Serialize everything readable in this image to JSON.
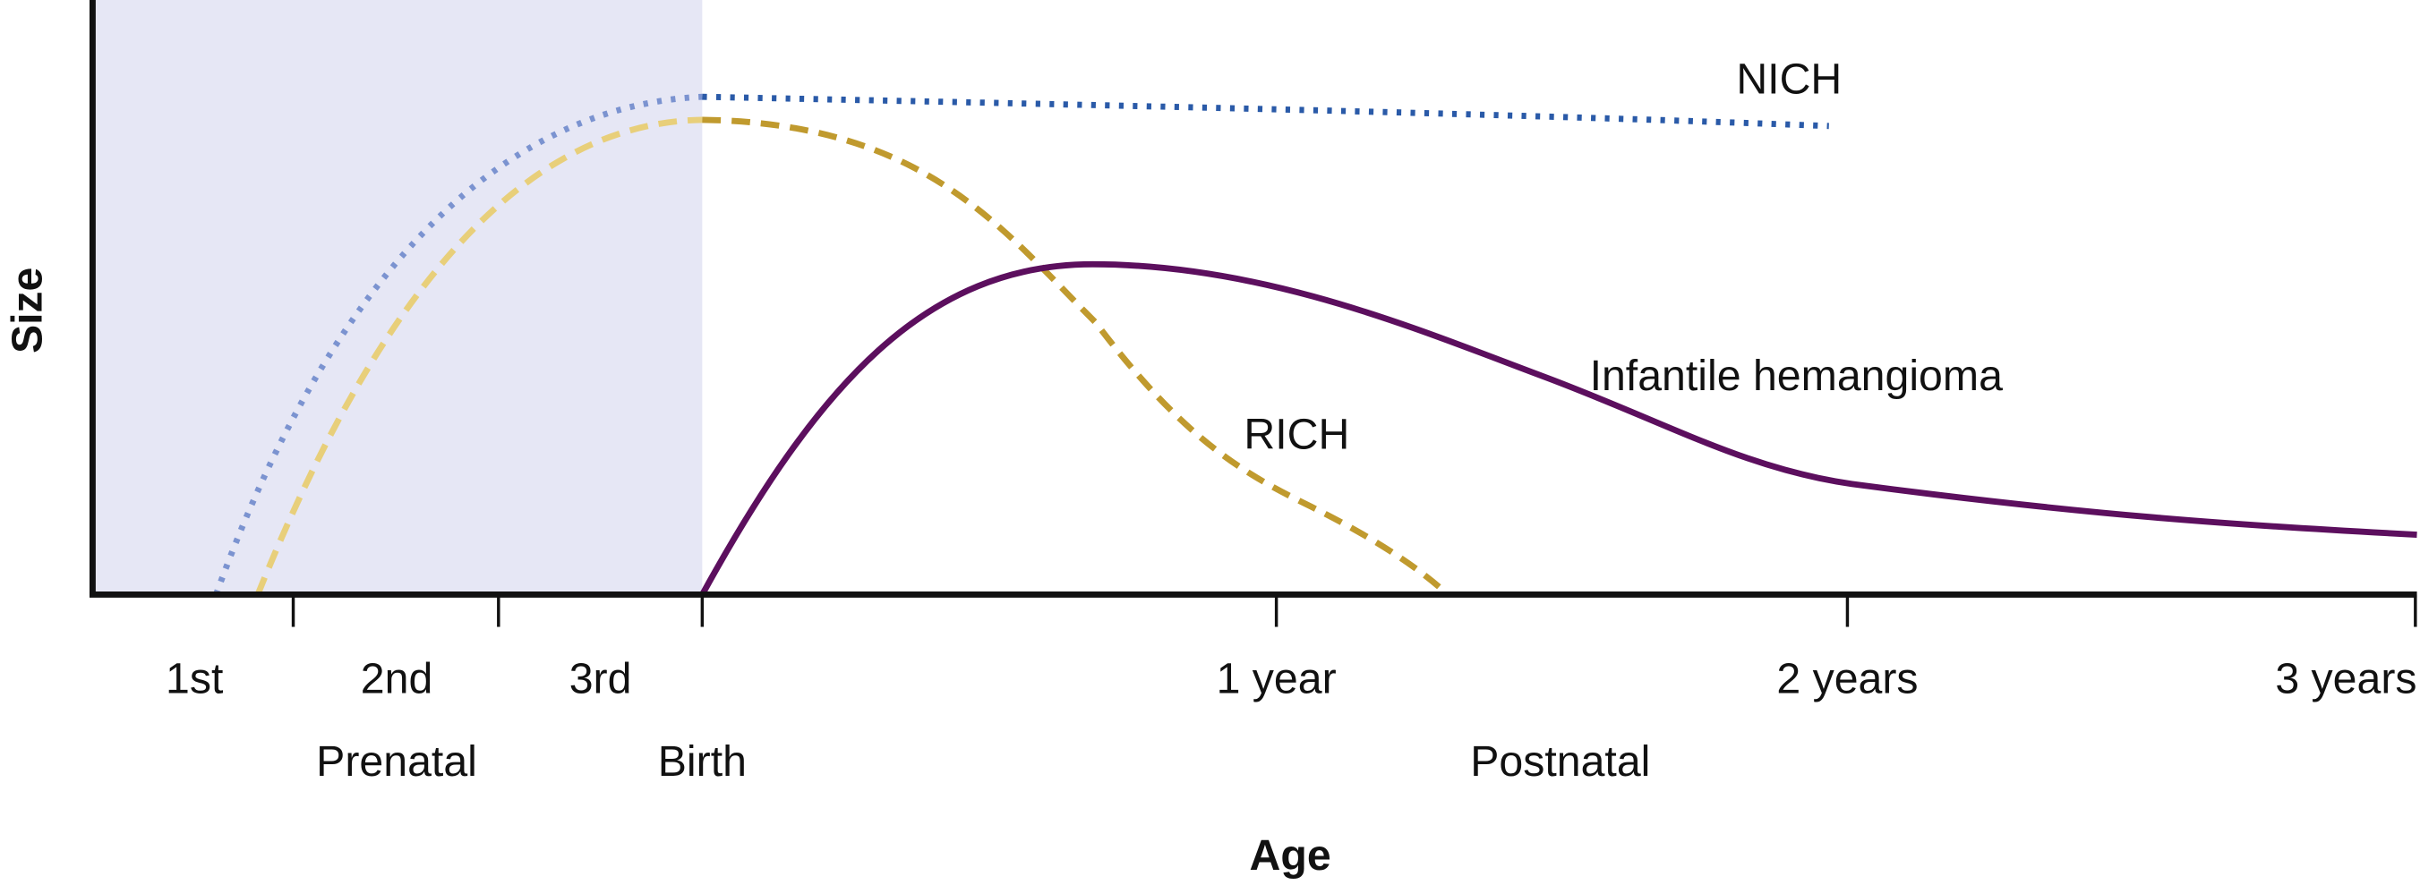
{
  "axes": {
    "y_label": "Size",
    "x_label": "Age"
  },
  "ticks": [
    "1st",
    "2nd",
    "3rd",
    "1 year",
    "2 years",
    "3 years"
  ],
  "periods": [
    "Prenatal",
    "Birth",
    "Postnatal"
  ],
  "curves": {
    "nich": "NICH",
    "rich": "RICH",
    "ih": "Infantile hemangioma"
  }
}
